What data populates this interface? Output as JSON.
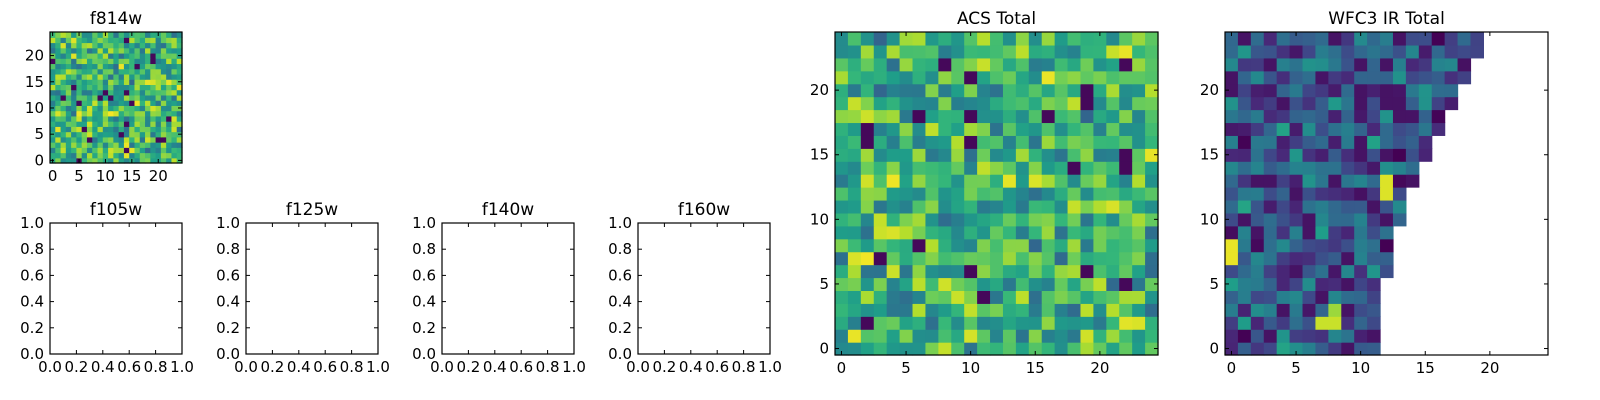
{
  "colormap": "viridis",
  "chart_data": [
    {
      "type": "heatmap",
      "title": "f814w",
      "grid": false,
      "xlim": [
        -0.5,
        24.5
      ],
      "ylim": [
        -0.5,
        24.5
      ],
      "xticks": [
        "0",
        "5",
        "10",
        "15",
        "20"
      ],
      "yticks": [
        "0",
        "5",
        "10",
        "15",
        "20"
      ],
      "nx": 25,
      "ny": 25,
      "mask": "none",
      "value_range": [
        0,
        1
      ],
      "pattern_seed": 7,
      "pattern_mean": 0.68
    },
    {
      "type": "scatter",
      "title": "f105w",
      "series": [],
      "xlim": [
        0.0,
        1.0
      ],
      "ylim": [
        0.0,
        1.0
      ],
      "xticks": [
        "0.0",
        "0.2",
        "0.4",
        "0.6",
        "0.8",
        "1.0"
      ],
      "yticks": [
        "0.0",
        "0.2",
        "0.4",
        "0.6",
        "0.8",
        "1.0"
      ]
    },
    {
      "type": "scatter",
      "title": "f125w",
      "series": [],
      "xlim": [
        0.0,
        1.0
      ],
      "ylim": [
        0.0,
        1.0
      ],
      "xticks": [
        "0.0",
        "0.2",
        "0.4",
        "0.6",
        "0.8",
        "1.0"
      ],
      "yticks": [
        "0.0",
        "0.2",
        "0.4",
        "0.6",
        "0.8",
        "1.0"
      ]
    },
    {
      "type": "scatter",
      "title": "f140w",
      "series": [],
      "xlim": [
        0.0,
        1.0
      ],
      "ylim": [
        0.0,
        1.0
      ],
      "xticks": [
        "0.0",
        "0.2",
        "0.4",
        "0.6",
        "0.8",
        "1.0"
      ],
      "yticks": [
        "0.0",
        "0.2",
        "0.4",
        "0.6",
        "0.8",
        "1.0"
      ]
    },
    {
      "type": "scatter",
      "title": "f160w",
      "series": [],
      "xlim": [
        0.0,
        1.0
      ],
      "ylim": [
        0.0,
        1.0
      ],
      "xticks": [
        "0.0",
        "0.2",
        "0.4",
        "0.6",
        "0.8",
        "1.0"
      ],
      "yticks": [
        "0.0",
        "0.2",
        "0.4",
        "0.6",
        "0.8",
        "1.0"
      ]
    },
    {
      "type": "heatmap",
      "title": "ACS Total",
      "grid": false,
      "xlim": [
        -0.5,
        24.5
      ],
      "ylim": [
        -0.5,
        24.5
      ],
      "xticks": [
        "0",
        "5",
        "10",
        "15",
        "20"
      ],
      "yticks": [
        "0",
        "5",
        "10",
        "15",
        "20"
      ],
      "nx": 25,
      "ny": 25,
      "mask": "none",
      "value_range": [
        0,
        1
      ],
      "pattern_seed": 21,
      "pattern_mean": 0.66
    },
    {
      "type": "heatmap",
      "title": "WFC3 IR Total",
      "grid": false,
      "xlim": [
        -0.5,
        24.5
      ],
      "ylim": [
        -0.5,
        24.5
      ],
      "xticks": [
        "0",
        "5",
        "10",
        "15",
        "20"
      ],
      "yticks": [
        "0",
        "5",
        "10",
        "15",
        "20"
      ],
      "nx": 25,
      "ny": 25,
      "mask": "upper-right triangle empty (column count shrinks toward top)",
      "value_range": [
        0,
        1
      ],
      "pattern_seed": 42,
      "pattern_mean": 0.3,
      "highlights": [
        {
          "x": 0,
          "y": 7,
          "value": 0.97
        },
        {
          "x": 0,
          "y": 8,
          "value": 0.97
        },
        {
          "x": 12,
          "y": 12,
          "value": 0.95
        },
        {
          "x": 12,
          "y": 13,
          "value": 0.95
        },
        {
          "x": 7,
          "y": 2,
          "value": 0.92
        },
        {
          "x": 8,
          "y": 2,
          "value": 0.92
        },
        {
          "x": 8,
          "y": 3,
          "value": 0.85
        }
      ]
    }
  ]
}
